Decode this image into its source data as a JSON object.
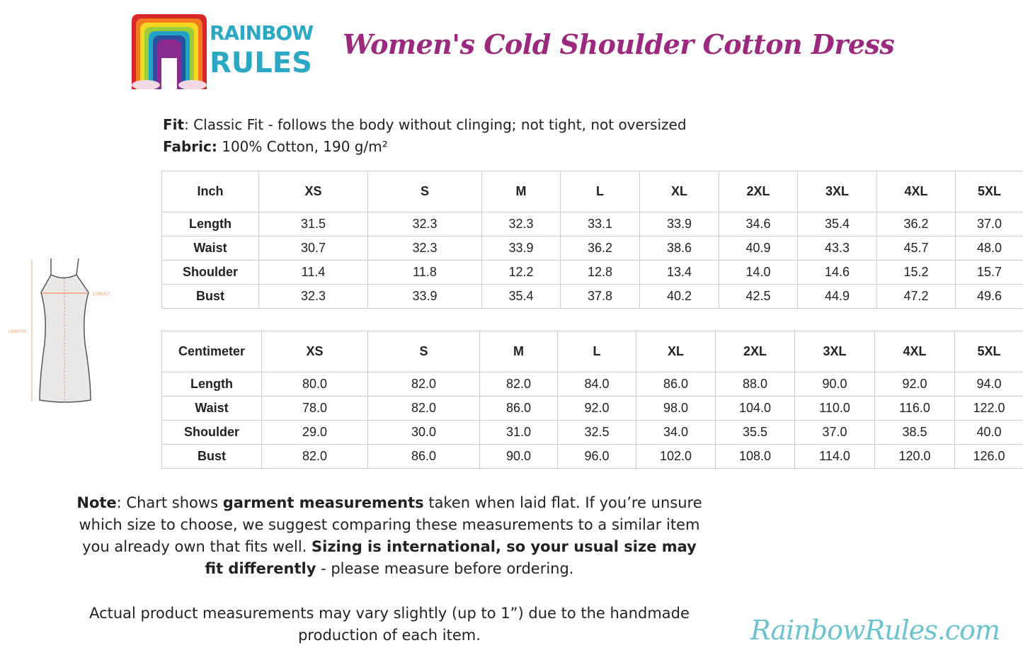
{
  "logo": {
    "line1": "RAINBOW",
    "line2": "RULES",
    "colors": [
      "#d9262b",
      "#f47a20",
      "#f6d920",
      "#9ccc3a",
      "#1fa3c6",
      "#2a4fa0",
      "#8a2a8e"
    ]
  },
  "title": "Women's Cold Shoulder Cotton Dress",
  "fit": {
    "label": "Fit",
    "text": ": Classic Fit - follows the body without clinging; not tight, not oversized"
  },
  "fabric": {
    "label": "Fabric:",
    "text": " 100% Cotton, 190 g/m²"
  },
  "diagram": {
    "bust_label": "1/2BUST",
    "length_label": "LENGTH"
  },
  "sizes": [
    "XS",
    "S",
    "M",
    "L",
    "XL",
    "2XL",
    "3XL",
    "4XL",
    "5XL"
  ],
  "inch_table": {
    "unit": "Inch",
    "rows": [
      {
        "label": "Length",
        "values": [
          "31.5",
          "32.3",
          "32.3",
          "33.1",
          "33.9",
          "34.6",
          "35.4",
          "36.2",
          "37.0"
        ]
      },
      {
        "label": "Waist",
        "values": [
          "30.7",
          "32.3",
          "33.9",
          "36.2",
          "38.6",
          "40.9",
          "43.3",
          "45.7",
          "48.0"
        ]
      },
      {
        "label": "Shoulder",
        "values": [
          "11.4",
          "11.8",
          "12.2",
          "12.8",
          "13.4",
          "14.0",
          "14.6",
          "15.2",
          "15.7"
        ]
      },
      {
        "label": "Bust",
        "values": [
          "32.3",
          "33.9",
          "35.4",
          "37.8",
          "40.2",
          "42.5",
          "44.9",
          "47.2",
          "49.6"
        ]
      }
    ]
  },
  "cm_table": {
    "unit": "Centimeter",
    "rows": [
      {
        "label": "Length",
        "values": [
          "80.0",
          "82.0",
          "82.0",
          "84.0",
          "86.0",
          "88.0",
          "90.0",
          "92.0",
          "94.0"
        ]
      },
      {
        "label": "Waist",
        "values": [
          "78.0",
          "82.0",
          "86.0",
          "92.0",
          "98.0",
          "104.0",
          "110.0",
          "116.0",
          "122.0"
        ]
      },
      {
        "label": "Shoulder",
        "values": [
          "29.0",
          "30.0",
          "31.0",
          "32.5",
          "34.0",
          "35.5",
          "37.0",
          "38.5",
          "40.0"
        ]
      },
      {
        "label": "Bust",
        "values": [
          "82.0",
          "86.0",
          "90.0",
          "96.0",
          "102.0",
          "108.0",
          "114.0",
          "120.0",
          "126.0"
        ]
      }
    ]
  },
  "note": {
    "label": "Note",
    "t1": ": Chart shows ",
    "b1": "garment measurements",
    "t2": " taken when laid flat. If you’re unsure which size to choose, we suggest comparing these measurements to a similar item you already own that fits well. ",
    "b2": "Sizing is international, so your usual size may fit differently",
    "t3": " - please measure before ordering."
  },
  "disclaimer": "Actual product measurements may vary slightly (up to 1”) due to the handmade production of each item.",
  "website": "RainbowRules.com"
}
